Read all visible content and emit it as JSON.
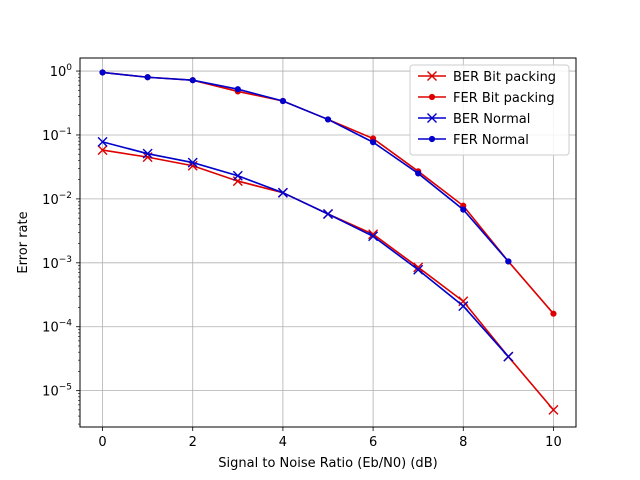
{
  "chart_data": {
    "type": "line",
    "title": "",
    "xlabel": "Signal to Noise Ratio (Eb/N0) (dB)",
    "ylabel": "Error rate",
    "xlim": [
      -0.5,
      10.5
    ],
    "ylim": [
      2.7e-06,
      1.6
    ],
    "yscale": "log",
    "grid": true,
    "legend_position": "top-right",
    "xticks": [
      0,
      2,
      4,
      6,
      8,
      10
    ],
    "xtick_labels": [
      "0",
      "2",
      "4",
      "6",
      "8",
      "10"
    ],
    "yticks": [
      1e-05,
      0.0001,
      0.001,
      0.01,
      0.1,
      1
    ],
    "ytick_labels": [
      {
        "base": "10",
        "exp": "−5"
      },
      {
        "base": "10",
        "exp": "−4"
      },
      {
        "base": "10",
        "exp": "−3"
      },
      {
        "base": "10",
        "exp": "−2"
      },
      {
        "base": "10",
        "exp": "−1"
      },
      {
        "base": "10",
        "exp": "0"
      }
    ],
    "series": [
      {
        "name": "BER Bit packing",
        "color": "#dd0000",
        "marker": "x",
        "x": [
          0,
          1,
          2,
          3,
          4,
          5,
          6,
          7,
          8,
          9,
          10
        ],
        "y": [
          0.058,
          0.045,
          0.033,
          0.019,
          0.0125,
          0.0058,
          0.0028,
          0.00085,
          0.00025,
          3.4e-05,
          5e-06
        ]
      },
      {
        "name": "FER Bit packing",
        "color": "#dd0000",
        "marker": "dot",
        "x": [
          0,
          1,
          2,
          3,
          4,
          5,
          6,
          7,
          8,
          9,
          10
        ],
        "y": [
          0.95,
          0.8,
          0.72,
          0.48,
          0.34,
          0.175,
          0.088,
          0.027,
          0.0078,
          0.00105,
          0.00016
        ]
      },
      {
        "name": "BER Normal",
        "color": "#0000cc",
        "marker": "x",
        "x": [
          0,
          1,
          2,
          3,
          4,
          5,
          6,
          7,
          8,
          9
        ],
        "y": [
          0.078,
          0.051,
          0.037,
          0.023,
          0.0125,
          0.0058,
          0.0026,
          0.00078,
          0.00021,
          3.4e-05
        ]
      },
      {
        "name": "FER Normal",
        "color": "#0000cc",
        "marker": "dot",
        "x": [
          0,
          1,
          2,
          3,
          4,
          5,
          6,
          7,
          8,
          9
        ],
        "y": [
          0.95,
          0.8,
          0.72,
          0.52,
          0.34,
          0.175,
          0.077,
          0.025,
          0.0068,
          0.00105
        ]
      }
    ]
  }
}
